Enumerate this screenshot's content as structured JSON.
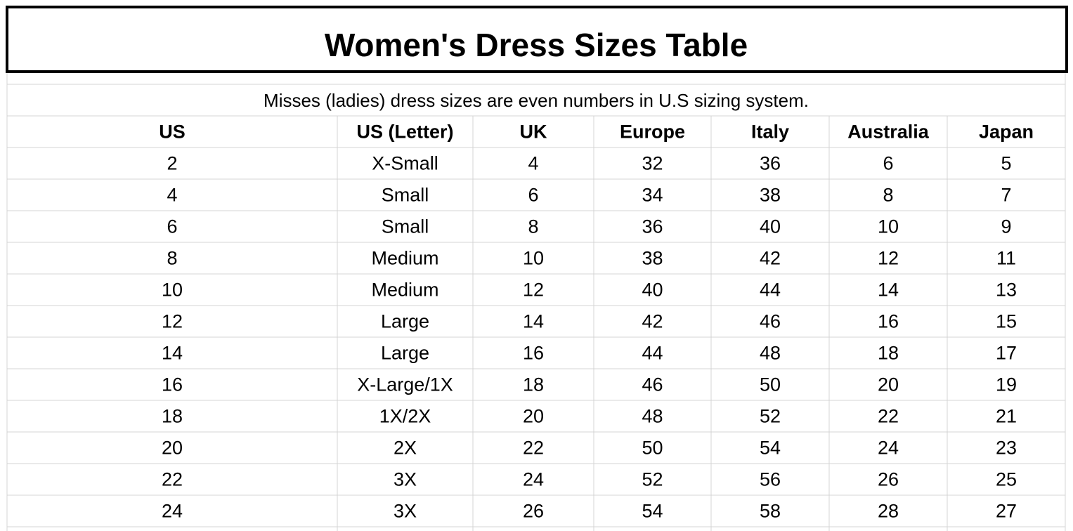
{
  "table": {
    "title": "Women's Dress Sizes Table",
    "subtitle": "Misses (ladies) dress sizes are even numbers in U.S sizing system.",
    "header": [
      "US",
      "US (Letter)",
      "UK",
      "Europe",
      "Italy",
      "Australia",
      "Japan"
    ],
    "rows": [
      [
        2,
        "X-Small",
        4,
        32,
        36,
        6,
        5
      ],
      [
        4,
        "Small",
        6,
        34,
        38,
        8,
        7
      ],
      [
        6,
        "Small",
        8,
        36,
        40,
        10,
        9
      ],
      [
        8,
        "Medium",
        10,
        38,
        42,
        12,
        11
      ],
      [
        10,
        "Medium",
        12,
        40,
        44,
        14,
        13
      ],
      [
        12,
        "Large",
        14,
        42,
        46,
        16,
        15
      ],
      [
        14,
        "Large",
        16,
        44,
        48,
        18,
        17
      ],
      [
        16,
        "X-Large/1X",
        18,
        46,
        50,
        20,
        19
      ],
      [
        18,
        "1X/2X",
        20,
        48,
        52,
        22,
        21
      ],
      [
        20,
        "2X",
        22,
        50,
        54,
        24,
        23
      ],
      [
        22,
        "3X",
        24,
        52,
        56,
        26,
        25
      ],
      [
        24,
        "3X",
        26,
        54,
        58,
        28,
        27
      ]
    ]
  }
}
